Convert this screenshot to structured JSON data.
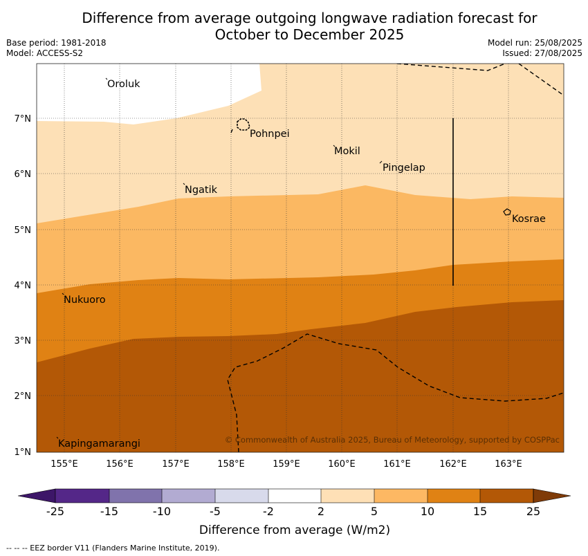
{
  "title_line1": "Difference from average outgoing longwave radiation forecast for",
  "title_line2": "October to December 2025",
  "base_period": "Base period: 1981-2018",
  "model": "Model: ACCESS-S2",
  "model_run": "Model run: 25/08/2025",
  "issued": "Issued: 27/08/2025",
  "copyright": "© Commonwealth of Australia 2025, Bureau of Meteorology, supported by COSPPac",
  "footer_note": "--  --  -- EEZ border V11 (Flanders Marine Institute, 2019).",
  "places": {
    "oroluk": "Oroluk",
    "pohnpei": "Pohnpei",
    "mokil": "Mokil",
    "pingelap": "Pingelap",
    "ngatik": "Ngatik",
    "kosrae": "Kosrae",
    "nukuoro": "Nukuoro",
    "kapingamarangi": "Kapingamarangi"
  },
  "axes": {
    "x_ticks": [
      "155°E",
      "156°E",
      "157°E",
      "158°E",
      "159°E",
      "160°E",
      "161°E",
      "162°E",
      "163°E"
    ],
    "y_ticks": [
      "7°N",
      "6°N",
      "5°N",
      "4°N",
      "3°N",
      "2°N",
      "1°N"
    ],
    "lon_range": [
      154.5,
      164
    ],
    "lat_range": [
      1,
      8
    ]
  },
  "colorbar": {
    "label": "Difference from average (W/m2)",
    "ticks": [
      "-25",
      "-15",
      "-10",
      "-5",
      "-2",
      "2",
      "5",
      "10",
      "15",
      "25"
    ],
    "colors": [
      "#3d1668",
      "#542788",
      "#8073ac",
      "#b2abd2",
      "#d8daeb",
      "#ffffff",
      "#fee0b6",
      "#fdb863",
      "#e08214",
      "#b35806",
      "#7f3b08"
    ]
  },
  "map_colors": {
    "band_2_5": "#fde0b6",
    "band_5_10": "#fbb862",
    "band_10_15": "#e08214",
    "band_15_25": "#b35806",
    "no_data": "#ffffff"
  }
}
